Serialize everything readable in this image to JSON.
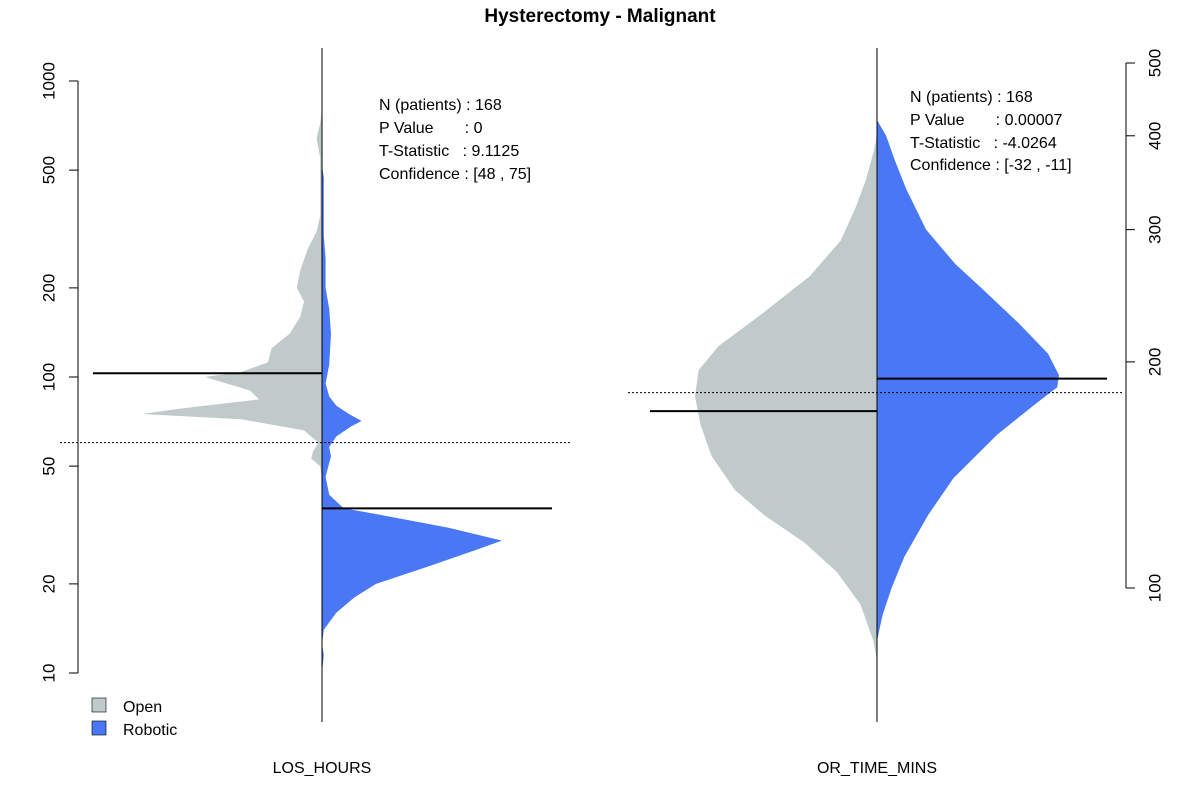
{
  "title": "Hysterectomy - Malignant",
  "colors": {
    "open": "#C0CACA",
    "robotic": "#4A78F5"
  },
  "legend": {
    "items": [
      {
        "label": "Open",
        "color": "#C0CACA"
      },
      {
        "label": "Robotic",
        "color": "#4A78F5"
      }
    ],
    "placement": "bottom-left"
  },
  "chart_data": [
    {
      "type": "area",
      "subtype": "split-violin",
      "xlabel": "LOS_HOURS",
      "y_scale": "log",
      "ylim": [
        10,
        1000
      ],
      "yticks": [
        "10",
        "20",
        "50",
        "100",
        "200",
        "500",
        "1000"
      ],
      "ytick_values": [
        10,
        20,
        50,
        100,
        200,
        500,
        1000
      ],
      "reference_line": 60,
      "series": [
        {
          "name": "Open",
          "median": 103,
          "density": [
            [
              10,
              0
            ],
            [
              45,
              0
            ],
            [
              50,
              0.01
            ],
            [
              53,
              0.06
            ],
            [
              56,
              0.05
            ],
            [
              60,
              0.02
            ],
            [
              66,
              0.1
            ],
            [
              72,
              0.45
            ],
            [
              75,
              1.0
            ],
            [
              78,
              0.8
            ],
            [
              84,
              0.35
            ],
            [
              90,
              0.4
            ],
            [
              100,
              0.65
            ],
            [
              104,
              0.45
            ],
            [
              112,
              0.3
            ],
            [
              125,
              0.28
            ],
            [
              140,
              0.18
            ],
            [
              160,
              0.12
            ],
            [
              180,
              0.1
            ],
            [
              200,
              0.14
            ],
            [
              230,
              0.12
            ],
            [
              270,
              0.08
            ],
            [
              310,
              0.03
            ],
            [
              350,
              0.01
            ],
            [
              450,
              0.01
            ],
            [
              550,
              0.01
            ],
            [
              640,
              0.03
            ],
            [
              720,
              0.01
            ],
            [
              800,
              0
            ]
          ]
        },
        {
          "name": "Robotic",
          "median": 36,
          "density": [
            [
              10,
              0
            ],
            [
              11.5,
              0.01
            ],
            [
              12.5,
              0
            ],
            [
              14,
              0.01
            ],
            [
              16,
              0.08
            ],
            [
              18,
              0.18
            ],
            [
              20,
              0.3
            ],
            [
              23,
              0.6
            ],
            [
              26,
              0.85
            ],
            [
              28,
              1.0
            ],
            [
              31,
              0.7
            ],
            [
              34,
              0.35
            ],
            [
              36,
              0.12
            ],
            [
              40,
              0.04
            ],
            [
              46,
              0.02
            ],
            [
              54,
              0.05
            ],
            [
              58,
              0.04
            ],
            [
              63,
              0.08
            ],
            [
              68,
              0.16
            ],
            [
              71,
              0.22
            ],
            [
              75,
              0.15
            ],
            [
              80,
              0.08
            ],
            [
              86,
              0.04
            ],
            [
              95,
              0.02
            ],
            [
              110,
              0.04
            ],
            [
              140,
              0.05
            ],
            [
              170,
              0.04
            ],
            [
              200,
              0.02
            ],
            [
              250,
              0.02
            ],
            [
              300,
              0.01
            ],
            [
              420,
              0.01
            ],
            [
              470,
              0.01
            ],
            [
              520,
              0
            ]
          ]
        }
      ],
      "stats": [
        "N (patients) : 168",
        "P Value       : 0",
        "T-Statistic   : 9.1125",
        "Confidence : [48 , 75]"
      ]
    },
    {
      "type": "area",
      "subtype": "split-violin",
      "xlabel": "OR_TIME_MINS",
      "y_scale": "log",
      "ylim": [
        100,
        500
      ],
      "yticks": [
        "100",
        "200",
        "300",
        "400",
        "500"
      ],
      "ytick_values": [
        100,
        200,
        300,
        400,
        500
      ],
      "reference_line": 182,
      "series": [
        {
          "name": "Open",
          "median": 172,
          "density": [
            [
              80,
              0
            ],
            [
              85,
              0.02
            ],
            [
              95,
              0.09
            ],
            [
              105,
              0.22
            ],
            [
              115,
              0.4
            ],
            [
              125,
              0.62
            ],
            [
              135,
              0.78
            ],
            [
              150,
              0.91
            ],
            [
              165,
              0.97
            ],
            [
              180,
              1.0
            ],
            [
              195,
              0.98
            ],
            [
              210,
              0.87
            ],
            [
              230,
              0.65
            ],
            [
              260,
              0.37
            ],
            [
              290,
              0.2
            ],
            [
              320,
              0.12
            ],
            [
              350,
              0.06
            ],
            [
              380,
              0.02
            ],
            [
              400,
              0
            ]
          ]
        },
        {
          "name": "Robotic",
          "median": 190,
          "density": [
            [
              85,
              0
            ],
            [
              92,
              0.03
            ],
            [
              100,
              0.08
            ],
            [
              110,
              0.15
            ],
            [
              125,
              0.28
            ],
            [
              140,
              0.42
            ],
            [
              160,
              0.66
            ],
            [
              175,
              0.86
            ],
            [
              185,
              0.99
            ],
            [
              192,
              1.0
            ],
            [
              205,
              0.94
            ],
            [
              225,
              0.78
            ],
            [
              250,
              0.58
            ],
            [
              270,
              0.43
            ],
            [
              300,
              0.27
            ],
            [
              340,
              0.16
            ],
            [
              370,
              0.1
            ],
            [
              400,
              0.05
            ],
            [
              420,
              0
            ]
          ]
        }
      ],
      "stats": [
        "N (patients) : 168",
        "P Value       : 0.00007",
        "T-Statistic   : -4.0264",
        "Confidence : [-32 , -11]"
      ]
    }
  ]
}
